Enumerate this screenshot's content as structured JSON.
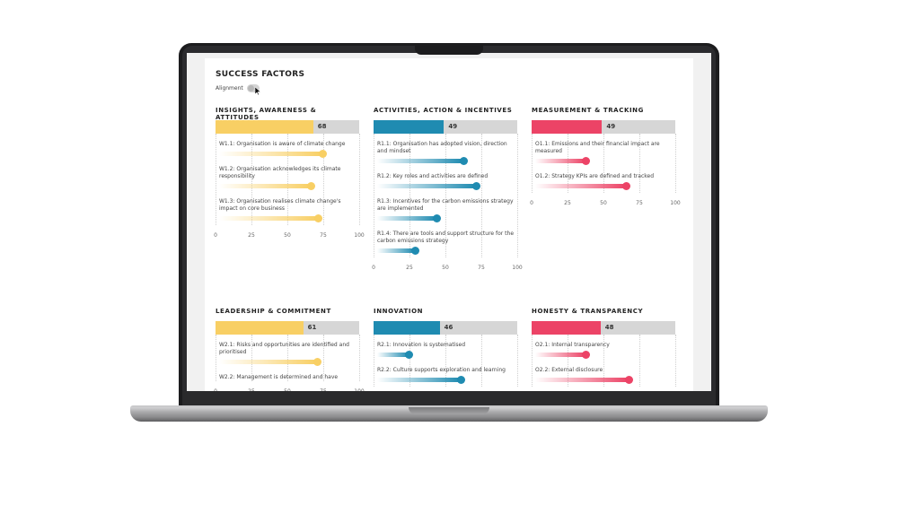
{
  "dashboard": {
    "title": "SUCCESS FACTORS",
    "alignment_label": "Alignment",
    "axis_ticks": [
      "0",
      "25",
      "50",
      "75",
      "100"
    ],
    "colors": {
      "yellow": "#f8cf64",
      "blue": "#1f8bb1",
      "pink": "#ec4366"
    },
    "groups": [
      {
        "title": "INSIGHTS, AWARENESS & ATTITUDES",
        "score": 68,
        "score_label": "68",
        "color": "yellow",
        "items": [
          {
            "label": "W1.1: Organisation is aware of climate change",
            "value": 72
          },
          {
            "label": "W1.2: Organisation acknowledges its climate responsibility",
            "value": 64
          },
          {
            "label": "W1.3: Organisation realises climate change's impact on core business",
            "value": 69
          }
        ]
      },
      {
        "title": "ACTIVITIES, ACTION & INCENTIVES",
        "score": 49,
        "score_label": "49",
        "color": "blue",
        "items": [
          {
            "label": "R1.1: Organisation has adopted vision, direction and mindset",
            "value": 60
          },
          {
            "label": "R1.2: Key roles and activities are defined",
            "value": 69
          },
          {
            "label": "R1.3: Incentives for the carbon emissions strategy are implemented",
            "value": 41
          },
          {
            "label": "R1.4: There are tools and support structure for the carbon emissions strategy",
            "value": 26
          }
        ]
      },
      {
        "title": "MEASUREMENT & TRACKING",
        "score": 49,
        "score_label": "49",
        "color": "pink",
        "items": [
          {
            "label": "O1.1: Emissions and their financial impact are measured",
            "value": 35
          },
          {
            "label": "O1.2: Strategy KPIs are defined and tracked",
            "value": 63
          }
        ]
      },
      {
        "title": "LEADERSHIP & COMMITMENT",
        "score": 61,
        "score_label": "61",
        "color": "yellow",
        "items": [
          {
            "label": "W2.1: Risks and opportunities are identified and prioritised",
            "value": 68
          },
          {
            "label": "W2.2: Management is determined and have",
            "value": 0
          }
        ]
      },
      {
        "title": "INNOVATION",
        "score": 46,
        "score_label": "46",
        "color": "blue",
        "items": [
          {
            "label": "R2.1: Innovation is systematised",
            "value": 22
          },
          {
            "label": "R2.2: Culture supports exploration and learning",
            "value": 58
          }
        ]
      },
      {
        "title": "HONESTY & TRANSPARENCY",
        "score": 48,
        "score_label": "48",
        "color": "pink",
        "items": [
          {
            "label": "O2.1: Internal transparency",
            "value": 35
          },
          {
            "label": "O2.2: External disclosure",
            "value": 65
          }
        ]
      }
    ]
  }
}
